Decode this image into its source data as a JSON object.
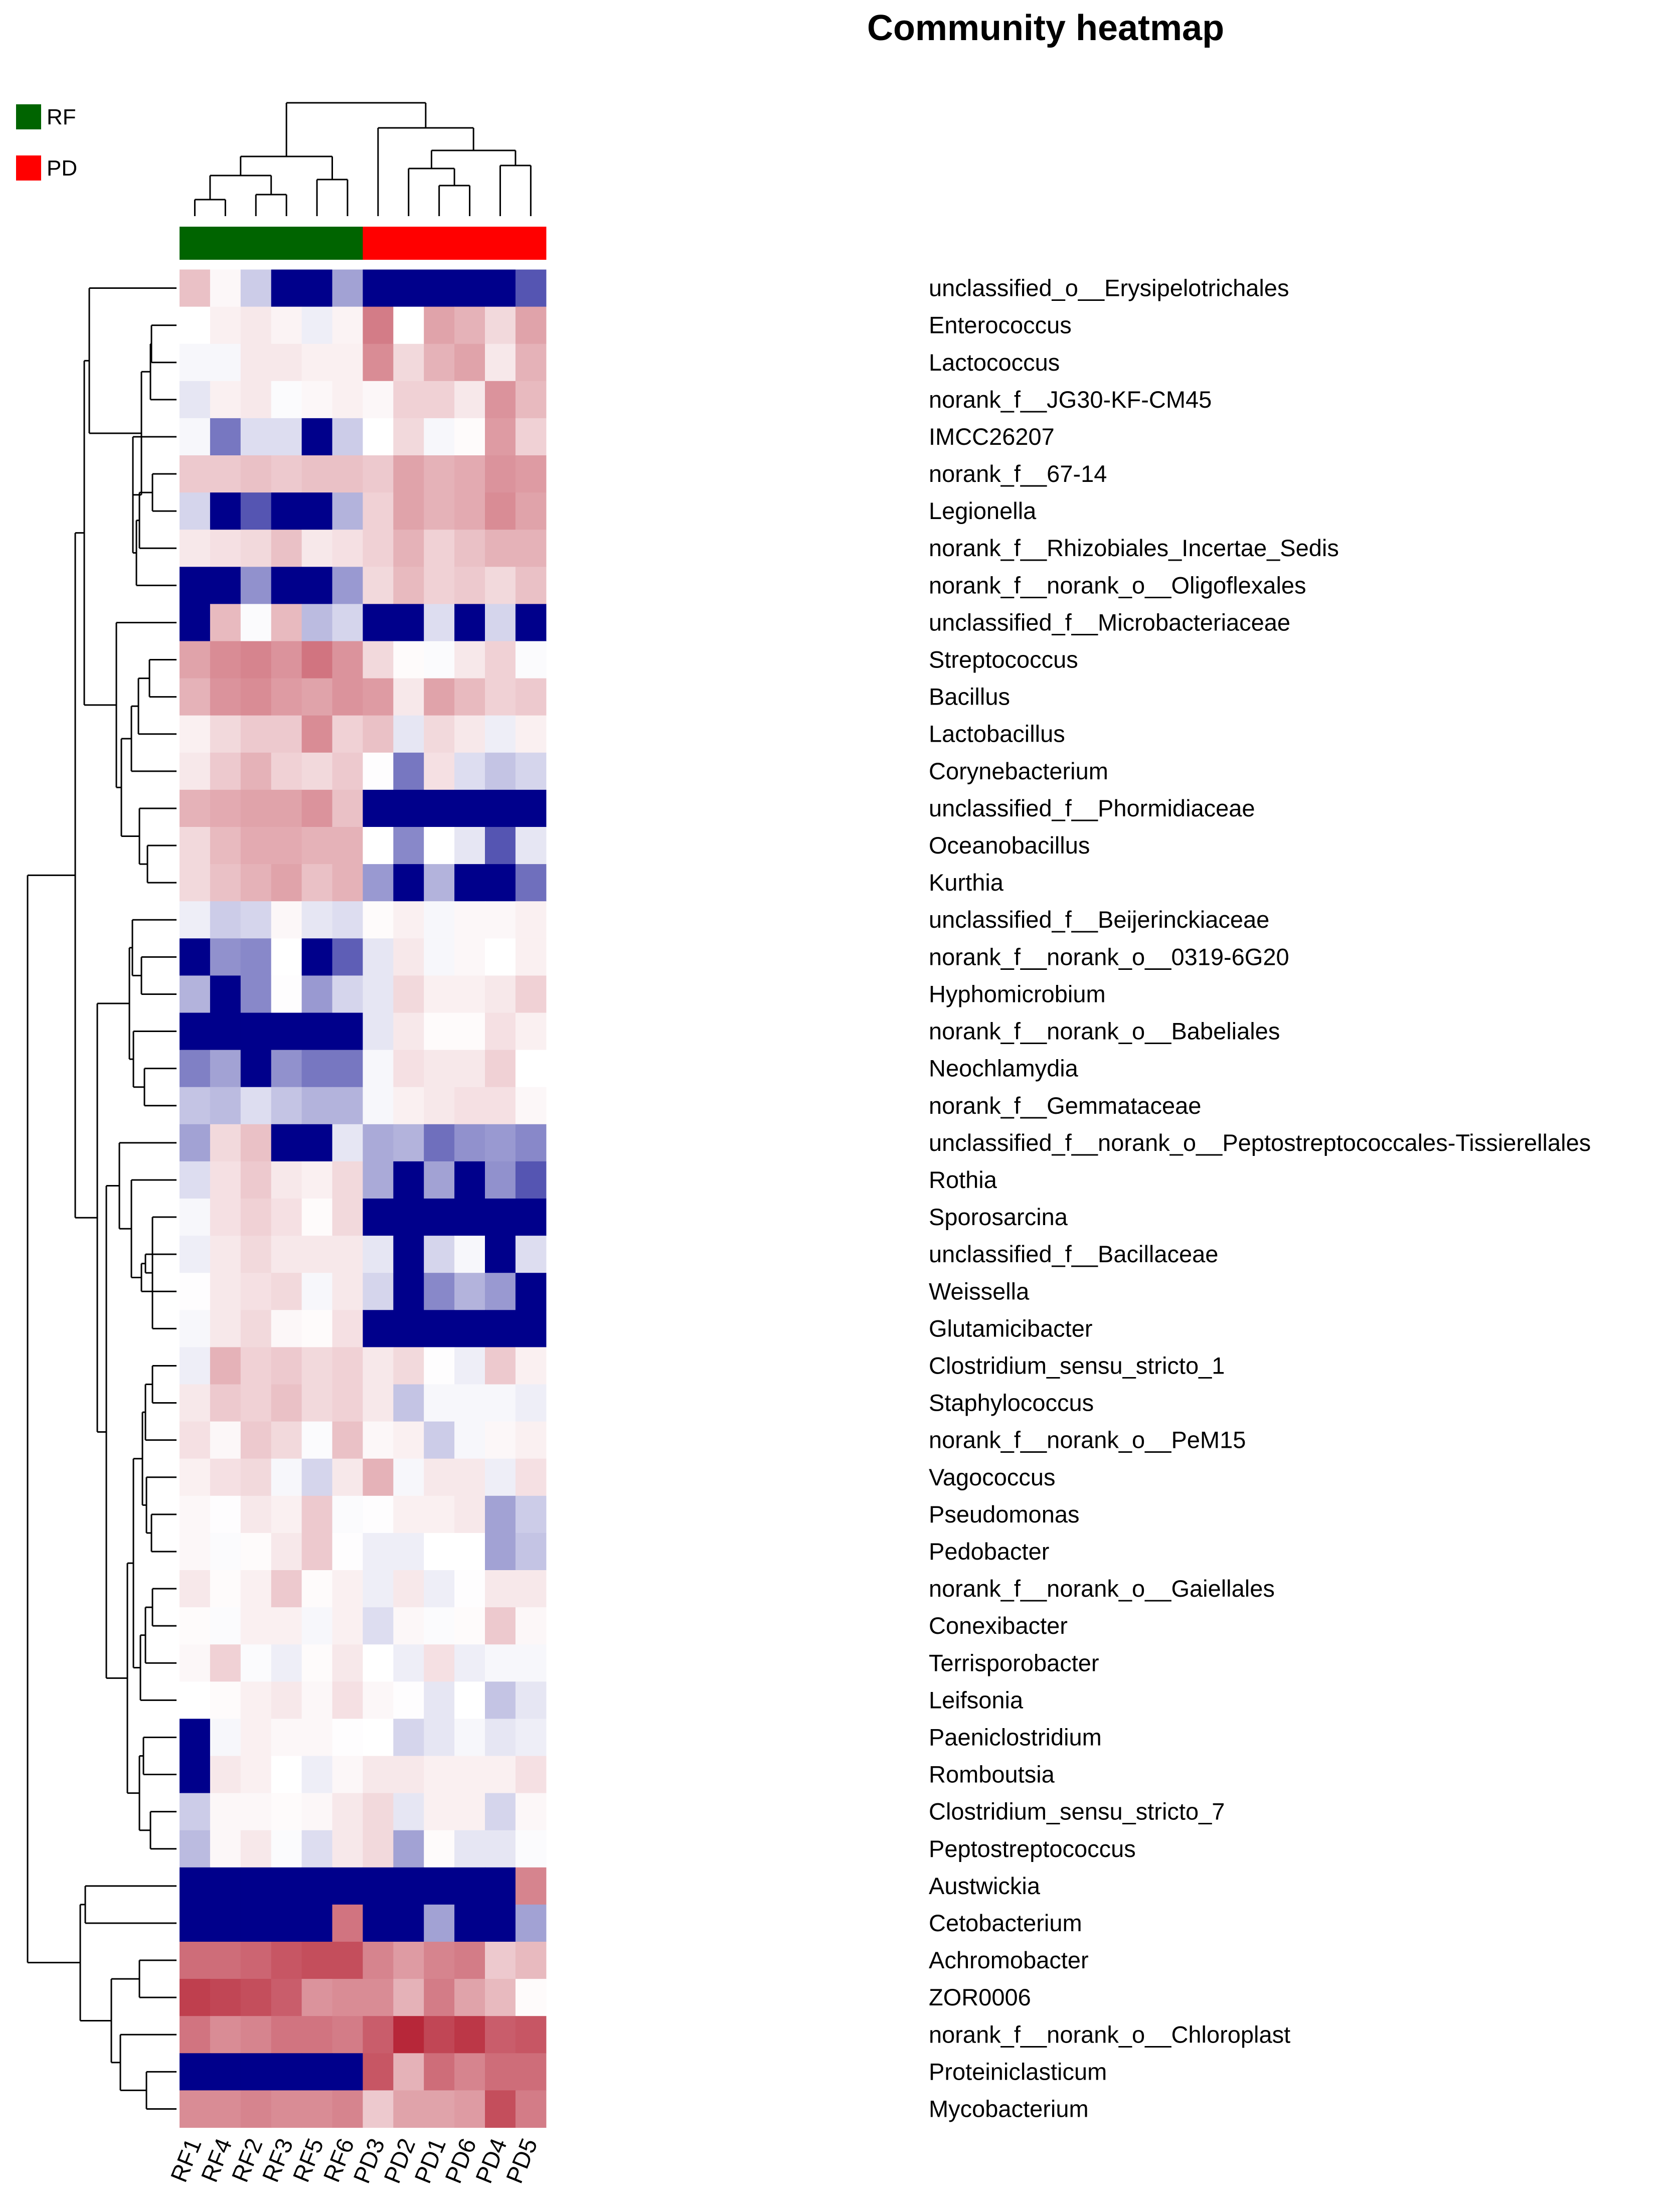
{
  "chart_data": {
    "type": "heatmap",
    "title": "Community heatmap",
    "legend": {
      "placement": "top-left",
      "entries": [
        {
          "name": "RF",
          "color": "#006400"
        },
        {
          "name": "PD",
          "color": "#ff0000"
        }
      ]
    },
    "columns": [
      "RF1",
      "RF4",
      "RF2",
      "RF3",
      "RF5",
      "RF6",
      "PD3",
      "PD2",
      "PD1",
      "PD6",
      "PD4",
      "PD5"
    ],
    "column_groups": [
      "RF",
      "RF",
      "RF",
      "RF",
      "RF",
      "RF",
      "PD",
      "PD",
      "PD",
      "PD",
      "PD",
      "PD"
    ],
    "color_scale": {
      "min": -3,
      "max": 3,
      "low": "#00008b",
      "mid": "#ffffff",
      "high": "#b2182b"
    },
    "rows": [
      "unclassified_o__Erysipelotrichales",
      "Enterococcus",
      "Lactococcus",
      "norank_f__JG30-KF-CM45",
      "IMCC26207",
      "norank_f__67-14",
      "Legionella",
      "norank_f__Rhizobiales_Incertae_Sedis",
      "norank_f__norank_o__Oligoflexales",
      "unclassified_f__Microbacteriaceae",
      "Streptococcus",
      "Bacillus",
      "Lactobacillus",
      "Corynebacterium",
      "unclassified_f__Phormidiaceae",
      "Oceanobacillus",
      "Kurthia",
      "unclassified_f__Beijerinckiaceae",
      "norank_f__norank_o__0319-6G20",
      "Hyphomicrobium",
      "norank_f__norank_o__Babeliales",
      "Neochlamydia",
      "norank_f__Gemmataceae",
      "unclassified_f__norank_o__Peptostreptococcales-Tissierellales",
      "Rothia",
      "Sporosarcina",
      "unclassified_f__Bacillaceae",
      "Weissella",
      "Glutamicibacter",
      "Clostridium_sensu_stricto_1",
      "Staphylococcus",
      "norank_f__norank_o__PeM15",
      "Vagococcus",
      "Pseudomonas",
      "Pedobacter",
      "norank_f__norank_o__Gaiellales",
      "Conexibacter",
      "Terrisporobacter",
      "Leifsonia",
      "Paeniclostridium",
      "Romboutsia",
      "Clostridium_sensu_stricto_7",
      "Peptostreptococcus",
      "Austwickia",
      "Cetobacterium",
      "Achromobacter",
      "ZOR0006",
      "norank_f__norank_o__Chloroplast",
      "Proteiniclasticum",
      "Mycobacterium"
    ],
    "values": [
      [
        0.8,
        0.1,
        -0.6,
        -3,
        -3,
        -1.1,
        -3,
        -3,
        -3,
        -3,
        -3,
        -2
      ],
      [
        0,
        0.2,
        0.3,
        0.15,
        -0.2,
        0.15,
        1.7,
        0,
        1.2,
        1,
        0.5,
        1.2
      ],
      [
        -0.1,
        -0.1,
        0.3,
        0.3,
        0.2,
        0.2,
        1.5,
        0.5,
        1.0,
        1.2,
        0.3,
        1.0
      ],
      [
        -0.3,
        0.2,
        0.3,
        -0.05,
        0.1,
        0.2,
        0.1,
        0.6,
        0.6,
        0.3,
        1.4,
        0.9
      ],
      [
        -0.1,
        -1.6,
        -0.4,
        -0.4,
        -3,
        -0.6,
        0,
        0.5,
        -0.1,
        0.05,
        1.3,
        0.6
      ],
      [
        0.7,
        0.7,
        0.8,
        0.7,
        0.8,
        0.8,
        0.7,
        1.2,
        1.0,
        1.1,
        1.4,
        1.3
      ],
      [
        -0.5,
        -3,
        -2,
        -3,
        -3,
        -0.9,
        0.6,
        1.2,
        1.0,
        1.1,
        1.5,
        1.2
      ],
      [
        0.3,
        0.4,
        0.5,
        0.8,
        0.3,
        0.4,
        0.6,
        1.0,
        0.6,
        0.8,
        1.0,
        1.0
      ],
      [
        -3,
        -3,
        -1.3,
        -3,
        -3,
        -1.2,
        0.5,
        0.9,
        0.6,
        0.7,
        0.5,
        0.8
      ],
      [
        -3,
        0.9,
        -0.05,
        0.9,
        -0.8,
        -0.5,
        -3,
        -3,
        -0.4,
        -3,
        -0.5,
        -3
      ],
      [
        1.2,
        1.5,
        1.6,
        1.4,
        1.8,
        1.4,
        0.5,
        0.05,
        -0.05,
        0.3,
        0.6,
        -0.05
      ],
      [
        1.0,
        1.4,
        1.5,
        1.3,
        1.2,
        1.4,
        1.3,
        0.3,
        1.2,
        0.9,
        0.6,
        0.7
      ],
      [
        0.2,
        0.5,
        0.7,
        0.7,
        1.5,
        0.6,
        0.8,
        -0.3,
        0.5,
        0.3,
        -0.2,
        0.2
      ],
      [
        0.3,
        0.7,
        1.0,
        0.6,
        0.5,
        0.7,
        0.02,
        -1.6,
        0.4,
        -0.4,
        -0.7,
        -0.5
      ],
      [
        1.0,
        1.1,
        1.2,
        1.2,
        1.4,
        0.8,
        -3,
        -3,
        -3,
        -3,
        -3,
        -3
      ],
      [
        0.5,
        0.9,
        1.1,
        1.1,
        1.0,
        1.0,
        0,
        -1.4,
        0,
        -0.3,
        -2,
        -0.3
      ],
      [
        0.5,
        0.8,
        1.0,
        1.2,
        0.8,
        1.0,
        -1.2,
        -3,
        -0.9,
        -3,
        -3,
        -1.7
      ],
      [
        -0.2,
        -0.6,
        -0.5,
        0.1,
        -0.3,
        -0.4,
        0.05,
        0.2,
        -0.1,
        0.1,
        0.1,
        0.2
      ],
      [
        -3,
        -1.3,
        -1.4,
        0,
        -3,
        -1.9,
        -0.3,
        0.3,
        -0.1,
        0.1,
        0,
        0.2
      ],
      [
        -0.9,
        -3,
        -1.4,
        0.02,
        -1.2,
        -0.5,
        -0.3,
        0.5,
        0.2,
        0.2,
        0.3,
        0.6
      ],
      [
        -3,
        -3,
        -3,
        -3,
        -3,
        -3,
        -0.3,
        0.3,
        0.05,
        0.05,
        0.4,
        0.2
      ],
      [
        -1.5,
        -1.1,
        -3,
        -1.3,
        -1.6,
        -1.6,
        -0.1,
        0.4,
        0.3,
        0.3,
        0.6,
        0
      ],
      [
        -0.7,
        -0.8,
        -0.4,
        -0.7,
        -0.9,
        -0.9,
        -0.1,
        0.2,
        0.3,
        0.4,
        0.4,
        0.1
      ],
      [
        -1.1,
        0.5,
        0.8,
        -3,
        -3,
        -0.3,
        -1.0,
        -0.9,
        -1.7,
        -1.3,
        -1.2,
        -1.4
      ],
      [
        -0.4,
        0.4,
        0.7,
        0.3,
        0.2,
        0.5,
        -1.0,
        -3,
        -1.1,
        -3,
        -1.3,
        -2
      ],
      [
        -0.1,
        0.4,
        0.6,
        0.4,
        0.05,
        0.5,
        -3,
        -3,
        -3,
        -3,
        -3,
        -3
      ],
      [
        -0.2,
        0.3,
        0.5,
        0.3,
        0.3,
        0.3,
        -0.3,
        -3,
        -0.5,
        -0.1,
        -3,
        -0.4
      ],
      [
        0.02,
        0.3,
        0.4,
        0.5,
        -0.1,
        0.3,
        -0.5,
        -3,
        -1.4,
        -0.9,
        -1.2,
        -3
      ],
      [
        -0.1,
        0.3,
        0.5,
        0.1,
        0.05,
        0.4,
        -3,
        -3,
        -3,
        -3,
        -3,
        -3
      ],
      [
        -0.2,
        1.0,
        0.6,
        0.7,
        0.5,
        0.6,
        0.3,
        0.5,
        0.02,
        -0.2,
        0.7,
        0.2
      ],
      [
        0.3,
        0.7,
        0.6,
        0.8,
        0.5,
        0.6,
        0.3,
        -0.7,
        -0.1,
        -0.1,
        -0.1,
        -0.2
      ],
      [
        0.4,
        0.1,
        0.7,
        0.5,
        -0.05,
        0.8,
        0.1,
        0.2,
        -0.6,
        -0.1,
        0.1,
        0.2
      ],
      [
        0.2,
        0.4,
        0.5,
        -0.1,
        -0.5,
        0.3,
        1.0,
        -0.1,
        0.3,
        0.3,
        -0.2,
        0.4
      ],
      [
        0.1,
        0.02,
        0.3,
        0.2,
        0.7,
        -0.05,
        0.02,
        0.2,
        0.2,
        0.3,
        -1.1,
        -0.6
      ],
      [
        0.1,
        -0.05,
        0.05,
        0.3,
        0.7,
        0.02,
        -0.2,
        -0.2,
        0,
        0,
        -1.1,
        -0.7
      ],
      [
        0.3,
        0.05,
        0.2,
        0.7,
        0.05,
        0.2,
        -0.2,
        0.3,
        -0.2,
        0.02,
        0.3,
        0.3
      ],
      [
        0.05,
        -0.05,
        0.2,
        0.2,
        -0.1,
        0.2,
        -0.4,
        0.1,
        -0.05,
        0.05,
        0.7,
        0.1
      ],
      [
        0.1,
        0.6,
        -0.05,
        -0.2,
        0.05,
        0.3,
        0,
        -0.2,
        0.4,
        -0.2,
        -0.1,
        -0.1
      ],
      [
        0,
        0.05,
        0.2,
        0.3,
        0.1,
        0.4,
        0.1,
        0.02,
        -0.3,
        0,
        -0.7,
        -0.3
      ],
      [
        -3,
        -0.1,
        0.2,
        0.1,
        0.1,
        0.02,
        0,
        -0.5,
        -0.3,
        -0.1,
        -0.3,
        -0.2
      ],
      [
        -3,
        0.3,
        0.2,
        0,
        -0.2,
        0.1,
        0.3,
        0.3,
        0.2,
        0.2,
        0.2,
        0.4
      ],
      [
        -0.6,
        0.1,
        0.1,
        0.05,
        0.1,
        0.3,
        0.5,
        -0.3,
        0.2,
        0.2,
        -0.5,
        0.1
      ],
      [
        -0.8,
        0.1,
        0.3,
        -0.05,
        -0.4,
        0.3,
        0.5,
        -1.1,
        0.05,
        -0.3,
        -0.3,
        -0.05
      ],
      [
        -3,
        -3,
        -3,
        -3,
        -3,
        -3,
        -3,
        -3,
        -3,
        -3,
        -3,
        1.6
      ],
      [
        -3,
        -3,
        -3,
        -3,
        -3,
        1.8,
        -3,
        -3,
        -1.1,
        -3,
        -3,
        -1.1
      ],
      [
        1.9,
        1.9,
        2.0,
        2.2,
        2.3,
        2.3,
        1.6,
        1.3,
        1.6,
        1.7,
        0.7,
        0.9
      ],
      [
        2.5,
        2.4,
        2.3,
        2.1,
        1.4,
        1.5,
        1.5,
        1.0,
        1.7,
        1.2,
        0.9,
        0.05
      ],
      [
        1.8,
        1.5,
        1.6,
        1.8,
        1.8,
        1.7,
        2.1,
        2.8,
        2.4,
        2.6,
        2.1,
        2.2
      ],
      [
        -3,
        -3,
        -3,
        -3,
        -3,
        -3,
        2.2,
        1.0,
        1.9,
        1.6,
        1.9,
        1.9
      ],
      [
        1.5,
        1.5,
        1.6,
        1.5,
        1.5,
        1.6,
        0.7,
        1.2,
        1.2,
        1.3,
        2.3,
        1.7
      ]
    ]
  }
}
